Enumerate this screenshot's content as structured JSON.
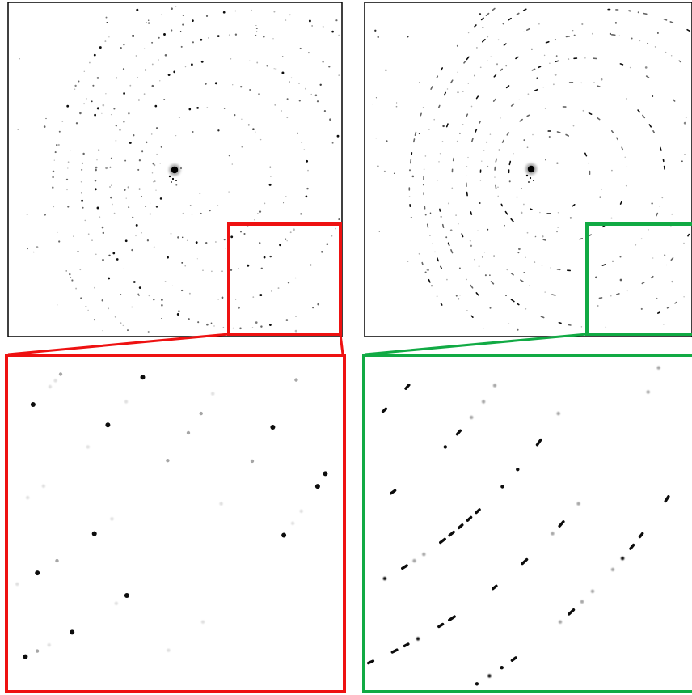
{
  "figure": {
    "panels": [
      {
        "id": "left",
        "highlight_color": "#ee1111",
        "zoom_border_color": "#ee1111"
      },
      {
        "id": "right",
        "highlight_color": "#11aa44",
        "zoom_border_color": "#11aa44"
      }
    ],
    "frame_color": "#000000",
    "spot_color": "#000000"
  }
}
